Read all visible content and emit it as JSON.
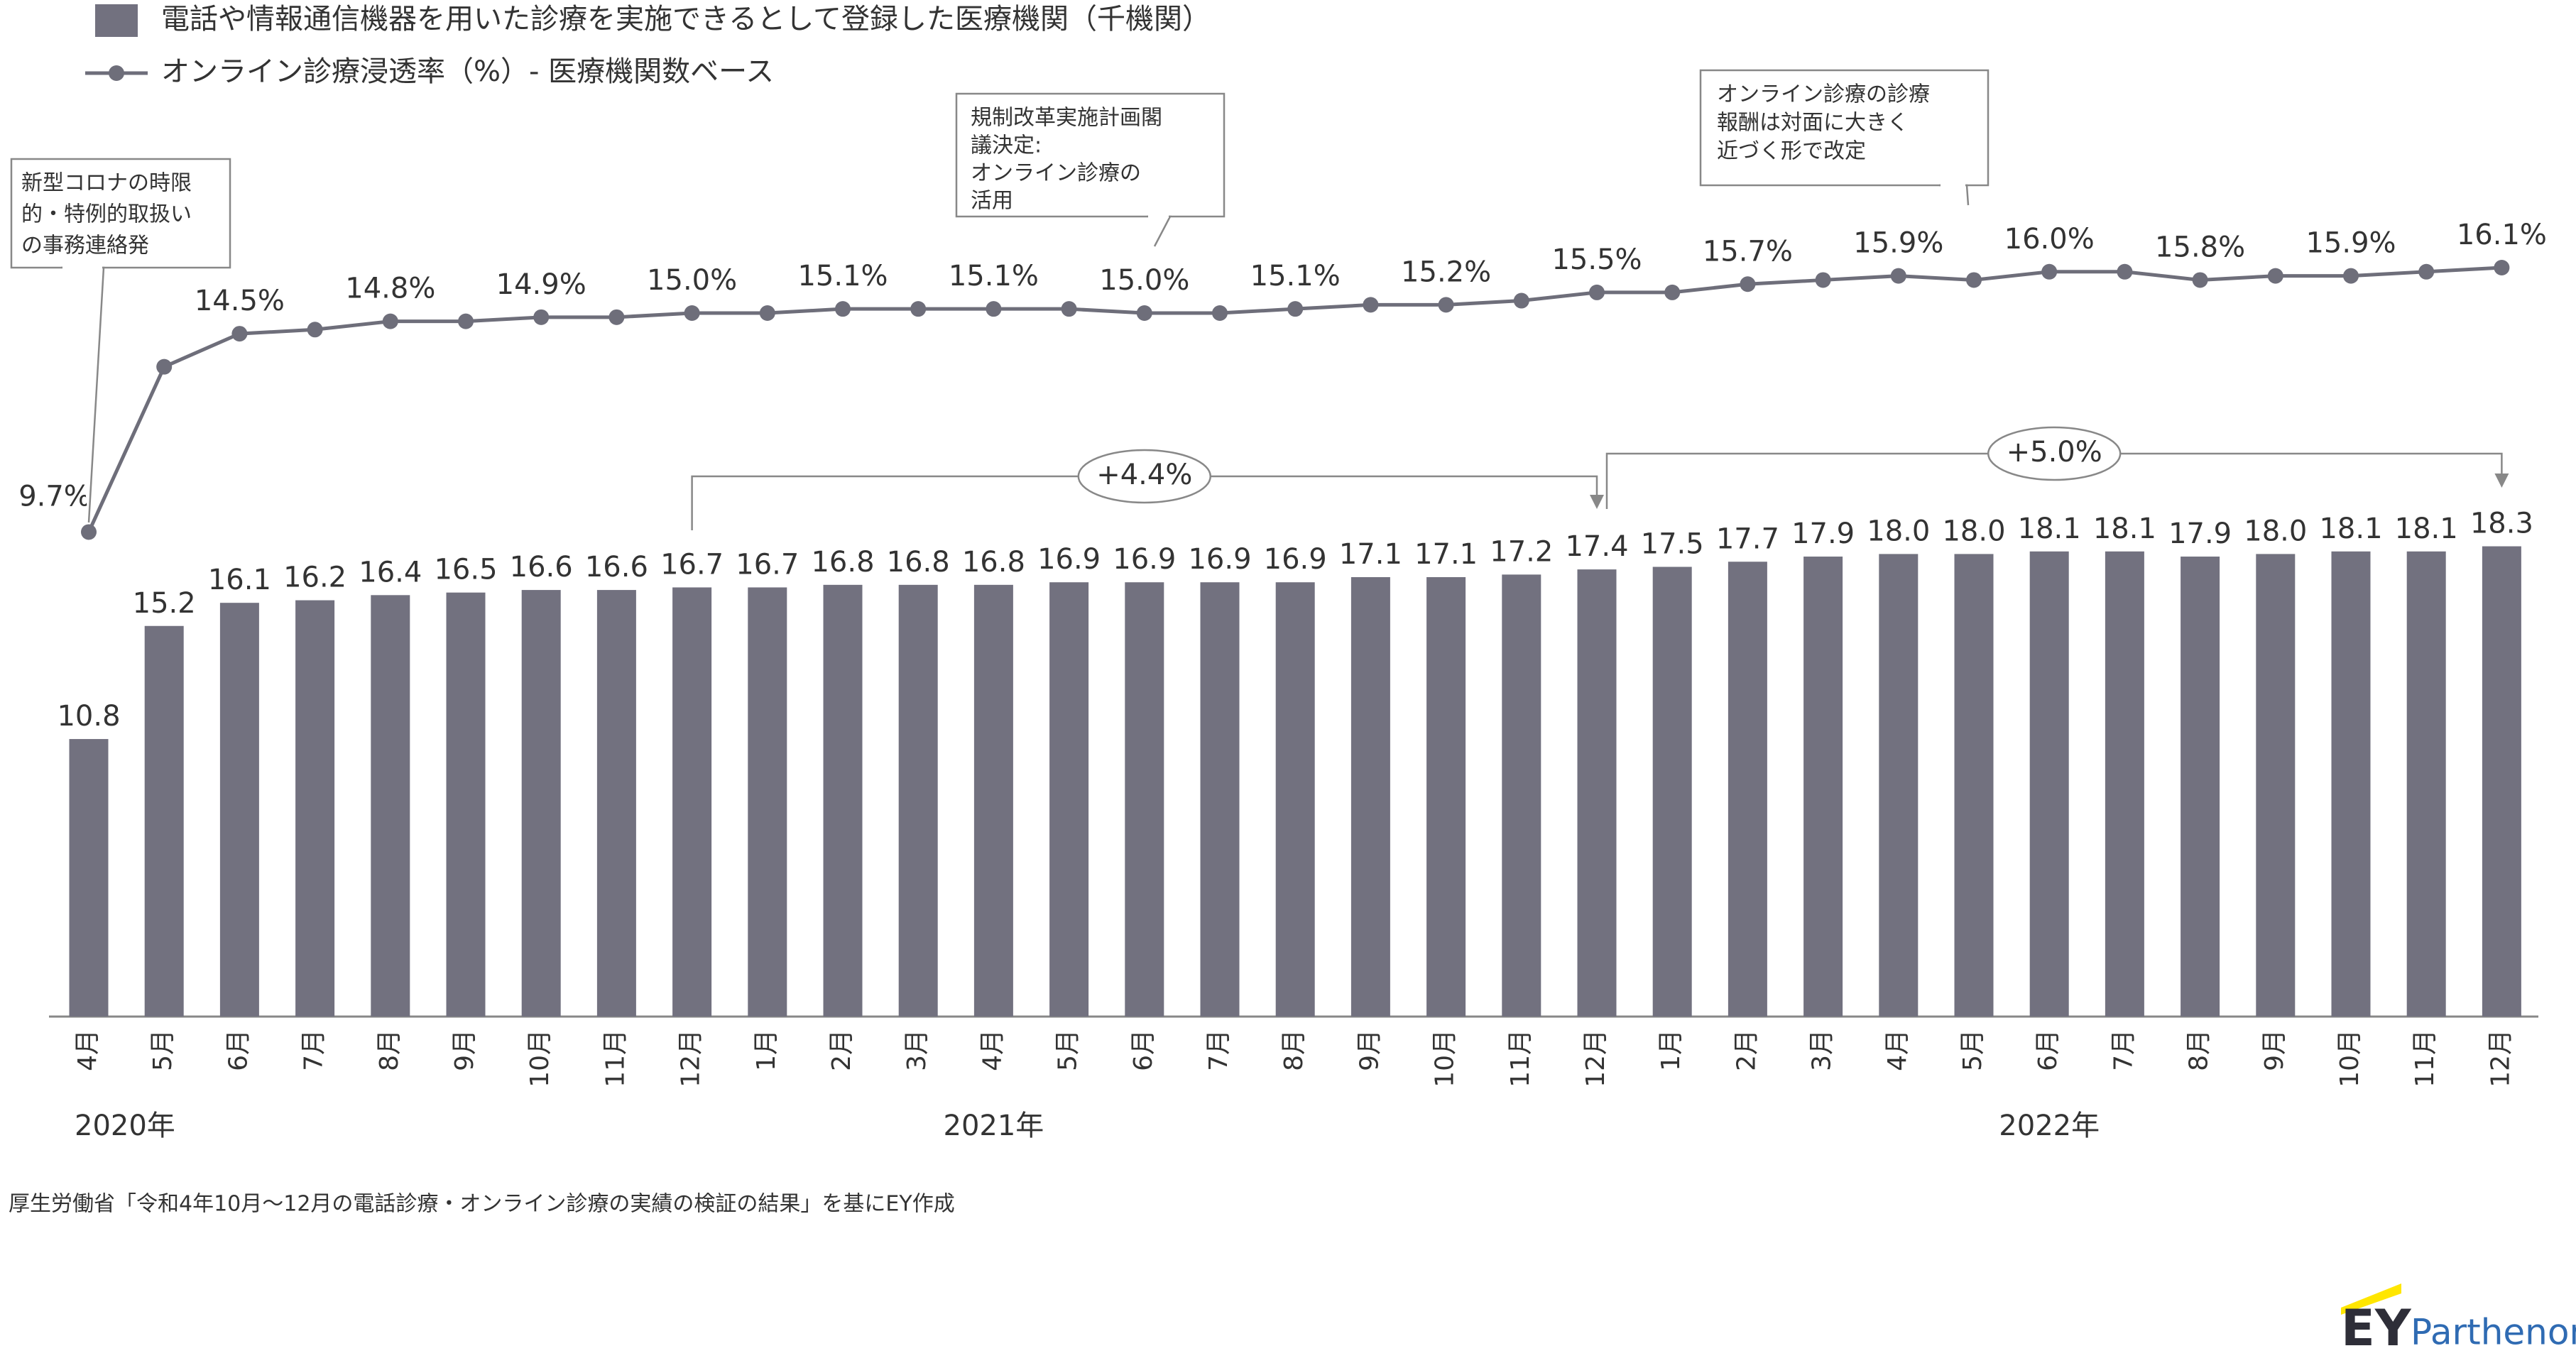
{
  "chart_data": {
    "type": "combo",
    "categories": [
      "4月",
      "5月",
      "6月",
      "7月",
      "8月",
      "9月",
      "10月",
      "11月",
      "12月",
      "1月",
      "2月",
      "3月",
      "4月",
      "5月",
      "6月",
      "7月",
      "8月",
      "9月",
      "10月",
      "11月",
      "12月",
      "1月",
      "2月",
      "3月",
      "4月",
      "5月",
      "6月",
      "7月",
      "8月",
      "9月",
      "10月",
      "11月",
      "12月"
    ],
    "year_labels": [
      "2020年",
      null,
      null,
      null,
      null,
      null,
      null,
      null,
      null,
      null,
      null,
      null,
      "2021年",
      null,
      null,
      null,
      null,
      null,
      null,
      null,
      null,
      null,
      null,
      null,
      null,
      null,
      "2022年",
      null,
      null,
      null,
      null,
      null,
      null
    ],
    "series": [
      {
        "name": "電話や情報通信機器を用いた診療を実施できるとして登録した医療機関（千機関）",
        "type": "bar",
        "color": "#72717f",
        "values": [
          10.8,
          15.2,
          16.1,
          16.2,
          16.4,
          16.5,
          16.6,
          16.6,
          16.7,
          16.7,
          16.8,
          16.8,
          16.8,
          16.9,
          16.9,
          16.9,
          16.9,
          17.1,
          17.1,
          17.2,
          17.4,
          17.5,
          17.7,
          17.9,
          18.0,
          18.0,
          18.1,
          18.1,
          17.9,
          18.0,
          18.1,
          18.1,
          18.3
        ],
        "value_labels": [
          "10.8",
          "15.2",
          "16.1",
          "16.2",
          "16.4",
          "16.5",
          "16.6",
          "16.6",
          "16.7",
          "16.7",
          "16.8",
          "16.8",
          "16.8",
          "16.9",
          "16.9",
          "16.9",
          "16.9",
          "17.1",
          "17.1",
          "17.2",
          "17.4",
          "17.5",
          "17.7",
          "17.9",
          "18.0",
          "18.0",
          "18.1",
          "18.1",
          "17.9",
          "18.0",
          "18.1",
          "18.1",
          "18.3"
        ]
      },
      {
        "name": "オンライン診療浸透率（%）- 医療機関数ベース",
        "type": "line",
        "color": "#6e6e7a",
        "values": [
          9.7,
          13.7,
          14.5,
          14.6,
          14.8,
          14.8,
          14.9,
          14.9,
          15.0,
          15.0,
          15.1,
          15.1,
          15.1,
          15.1,
          15.0,
          15.0,
          15.1,
          15.2,
          15.2,
          15.3,
          15.5,
          15.5,
          15.7,
          15.8,
          15.9,
          15.8,
          16.0,
          16.0,
          15.8,
          15.9,
          15.9,
          16.0,
          16.1
        ],
        "value_labels": [
          "9.7%",
          null,
          "14.5%",
          null,
          "14.8%",
          null,
          "14.9%",
          null,
          "15.0%",
          null,
          "15.1%",
          null,
          "15.1%",
          null,
          "15.0%",
          null,
          "15.1%",
          null,
          "15.2%",
          null,
          "15.5%",
          null,
          "15.7%",
          null,
          "15.9%",
          null,
          "16.0%",
          null,
          "15.8%",
          null,
          "15.9%",
          null,
          "16.1%"
        ]
      }
    ],
    "callouts": [
      {
        "lines": [
          "新型コロナの時限",
          "的・特例的取扱い",
          "の事務連絡発"
        ]
      },
      {
        "lines": [
          "規制改革実施計画閣",
          "議決定:",
          "オンライン診療の",
          "活用"
        ]
      },
      {
        "lines": [
          "オンライン診療の診療",
          "報酬は対面に大きく",
          "近づく形で改定"
        ]
      }
    ],
    "brackets": [
      {
        "label": "+4.4%"
      },
      {
        "label": "+5.0%"
      }
    ]
  },
  "source": "厚生労働省「令和4年10月～12月の電話診療・オンライン診療の実績の検証の結果」を基にEY作成",
  "logo": {
    "mark": "EY",
    "text": "Parthenon"
  }
}
